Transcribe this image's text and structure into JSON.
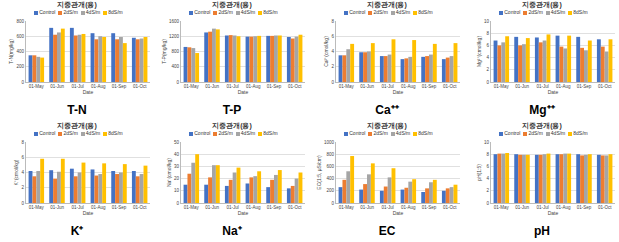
{
  "chart_data": [
    {
      "type": "bar",
      "title": "지중관개(용)",
      "categories": [
        "01-May",
        "01-Jun",
        "01-Jul",
        "01-Aug",
        "01-Sep",
        "01-Oct"
      ],
      "series": [
        {
          "name": "Control",
          "color": "#4472c4",
          "values": [
            350,
            710,
            710,
            640,
            640,
            580
          ]
        },
        {
          "name": "2dS/m",
          "color": "#ed7d31",
          "values": [
            350,
            620,
            610,
            560,
            560,
            560
          ]
        },
        {
          "name": "4dS/m",
          "color": "#a5a5a5",
          "values": [
            330,
            650,
            620,
            600,
            590,
            570
          ]
        },
        {
          "name": "8dS/m",
          "color": "#ffc000",
          "values": [
            320,
            700,
            630,
            590,
            510,
            590
          ]
        }
      ],
      "x_label": "Date",
      "y_label": "T-N(mg/kg)",
      "ylim": [
        0,
        800
      ],
      "yticks": [
        0,
        200,
        400,
        600,
        800
      ],
      "grid": true,
      "annotations": [
        "T-N"
      ]
    },
    {
      "type": "bar",
      "title": "지중관개(용)",
      "categories": [
        "01-May",
        "01-Jun",
        "01-Jul",
        "01-Aug",
        "01-Sep",
        "01-Oct"
      ],
      "series": [
        {
          "name": "Control",
          "color": "#4472c4",
          "values": [
            920,
            1300,
            1220,
            1190,
            1210,
            1180
          ]
        },
        {
          "name": "2dS/m",
          "color": "#ed7d31",
          "values": [
            910,
            1320,
            1230,
            1190,
            1210,
            1140
          ]
        },
        {
          "name": "4dS/m",
          "color": "#a5a5a5",
          "values": [
            890,
            1400,
            1220,
            1200,
            1220,
            1190
          ]
        },
        {
          "name": "8dS/m",
          "color": "#ffc000",
          "values": [
            760,
            1380,
            1200,
            1210,
            1220,
            1240
          ]
        }
      ],
      "x_label": "Date",
      "y_label": "T-P(mg/kg)",
      "ylim": [
        0,
        1600
      ],
      "yticks": [
        0,
        400,
        800,
        1200,
        1600
      ],
      "grid": true,
      "annotations": [
        "T-P"
      ]
    },
    {
      "type": "bar",
      "title": "지중관개(용)",
      "categories": [
        "01-May",
        "01-Jun",
        "01-Jul",
        "01-Aug",
        "01-Sep",
        "01-Oct"
      ],
      "series": [
        {
          "name": "Control",
          "color": "#4472c4",
          "values": [
            3.5,
            3.9,
            3.4,
            3.0,
            3.3,
            3.0
          ]
        },
        {
          "name": "2dS/m",
          "color": "#ed7d31",
          "values": [
            3.5,
            3.9,
            3.4,
            3.1,
            3.4,
            3.2
          ]
        },
        {
          "name": "4dS/m",
          "color": "#a5a5a5",
          "values": [
            4.3,
            4.0,
            3.6,
            3.3,
            3.6,
            3.4
          ]
        },
        {
          "name": "8dS/m",
          "color": "#ffc000",
          "values": [
            5.0,
            5.1,
            5.6,
            5.5,
            5.0,
            5.1
          ]
        }
      ],
      "x_label": "Date",
      "y_label": "Ca²⁺(cmol/kg)",
      "ylim": [
        0,
        8
      ],
      "yticks": [
        0,
        2,
        4,
        6,
        8
      ],
      "grid": true,
      "annotations": [
        "Ca⁺⁺"
      ]
    },
    {
      "type": "bar",
      "title": "지중관개(용)",
      "categories": [
        "01-May",
        "01-Jun",
        "01-Jul",
        "01-Aug",
        "01-Sep",
        "01-Oct"
      ],
      "series": [
        {
          "name": "Control",
          "color": "#4472c4",
          "values": [
            6.8,
            7.4,
            7.3,
            7.6,
            7.4,
            7.0
          ]
        },
        {
          "name": "2dS/m",
          "color": "#ed7d31",
          "values": [
            6.0,
            6.0,
            6.5,
            5.8,
            5.6,
            5.8
          ]
        },
        {
          "name": "4dS/m",
          "color": "#a5a5a5",
          "values": [
            6.5,
            6.2,
            6.8,
            5.5,
            5.2,
            5.0
          ]
        },
        {
          "name": "8dS/m",
          "color": "#ffc000",
          "values": [
            7.5,
            7.2,
            7.8,
            7.6,
            6.8,
            7.0
          ]
        }
      ],
      "x_label": "Date",
      "y_label": "Mg²⁺(cmol/kg)",
      "ylim": [
        0,
        10
      ],
      "yticks": [
        0,
        2,
        4,
        6,
        8,
        10
      ],
      "grid": true,
      "annotations": [
        "Mg⁺⁺"
      ]
    },
    {
      "type": "bar",
      "title": "지중관개(용)",
      "categories": [
        "01-May",
        "01-Jun",
        "01-Jul",
        "01-Aug",
        "01-Sep",
        "01-Oct"
      ],
      "series": [
        {
          "name": "Control",
          "color": "#4472c4",
          "values": [
            4.2,
            4.3,
            4.5,
            4.4,
            4.2,
            4.2
          ]
        },
        {
          "name": "2dS/m",
          "color": "#ed7d31",
          "values": [
            3.5,
            3.2,
            3.5,
            3.6,
            3.8,
            3.5
          ]
        },
        {
          "name": "4dS/m",
          "color": "#a5a5a5",
          "values": [
            4.2,
            4.1,
            4.0,
            3.8,
            4.0,
            3.8
          ]
        },
        {
          "name": "8dS/m",
          "color": "#ffc000",
          "values": [
            5.8,
            5.8,
            5.3,
            5.2,
            5.1,
            4.9
          ]
        }
      ],
      "x_label": "Date",
      "y_label": "K⁺(cmol/kg)",
      "ylim": [
        0,
        8
      ],
      "yticks": [
        0,
        2,
        4,
        6,
        8
      ],
      "grid": true,
      "annotations": [
        "K⁺"
      ]
    },
    {
      "type": "bar",
      "title": "지중관개(용)",
      "categories": [
        "01-May",
        "01-Jun",
        "01-Jul",
        "01-Aug",
        "01-Sep",
        "01-Oct"
      ],
      "series": [
        {
          "name": "Control",
          "color": "#4472c4",
          "values": [
            15,
            15,
            14,
            16,
            13,
            12
          ]
        },
        {
          "name": "2dS/m",
          "color": "#ed7d31",
          "values": [
            24,
            21,
            19,
            21,
            19,
            14
          ]
        },
        {
          "name": "4dS/m",
          "color": "#a5a5a5",
          "values": [
            33,
            31,
            25,
            22,
            23,
            20
          ]
        },
        {
          "name": "8dS/m",
          "color": "#ffc000",
          "values": [
            40,
            31,
            29,
            26,
            27,
            25
          ]
        }
      ],
      "x_label": "Date",
      "y_label": "Na⁺(cmol/kg)",
      "ylim": [
        0,
        50
      ],
      "yticks": [
        0,
        10,
        20,
        30,
        40,
        50
      ],
      "grid": true,
      "annotations": [
        "Na⁺"
      ]
    },
    {
      "type": "bar",
      "title": "지중관개(용)",
      "categories": [
        "01-May",
        "01-Jun",
        "01-Jul",
        "01-Aug",
        "01-Sep",
        "01-Oct"
      ],
      "series": [
        {
          "name": "Control",
          "color": "#4472c4",
          "values": [
            260,
            220,
            200,
            220,
            180,
            200
          ]
        },
        {
          "name": "2dS/m",
          "color": "#ed7d31",
          "values": [
            380,
            310,
            270,
            250,
            240,
            240
          ]
        },
        {
          "name": "4dS/m",
          "color": "#a5a5a5",
          "values": [
            520,
            470,
            420,
            350,
            340,
            260
          ]
        },
        {
          "name": "8dS/m",
          "color": "#ffc000",
          "values": [
            770,
            650,
            570,
            390,
            380,
            300
          ]
        }
      ],
      "x_label": "Date",
      "y_label": "EC(1:5, μS/cm)",
      "ylim": [
        0,
        1000
      ],
      "yticks": [
        0,
        200,
        400,
        600,
        800,
        1000
      ],
      "grid": true,
      "annotations": [
        "EC"
      ]
    },
    {
      "type": "bar",
      "title": "지중관개(용)",
      "categories": [
        "01-May",
        "01-Jun",
        "01-Jul",
        "01-Aug",
        "01-Sep",
        "01-Oct"
      ],
      "series": [
        {
          "name": "Control",
          "color": "#4472c4",
          "values": [
            8.0,
            8.0,
            7.9,
            8.0,
            8.0,
            7.9
          ]
        },
        {
          "name": "2dS/m",
          "color": "#ed7d31",
          "values": [
            8.1,
            7.9,
            7.9,
            8.0,
            7.8,
            7.8
          ]
        },
        {
          "name": "4dS/m",
          "color": "#a5a5a5",
          "values": [
            8.1,
            7.9,
            8.0,
            8.1,
            7.9,
            7.8
          ]
        },
        {
          "name": "8dS/m",
          "color": "#ffc000",
          "values": [
            8.2,
            7.9,
            8.1,
            8.1,
            8.0,
            8.0
          ]
        }
      ],
      "x_label": "Date",
      "y_label": "pH(1:5)",
      "ylim": [
        0,
        10
      ],
      "yticks": [
        0,
        2,
        4,
        6,
        8,
        10
      ],
      "grid": true,
      "annotations": [
        "pH"
      ]
    }
  ]
}
